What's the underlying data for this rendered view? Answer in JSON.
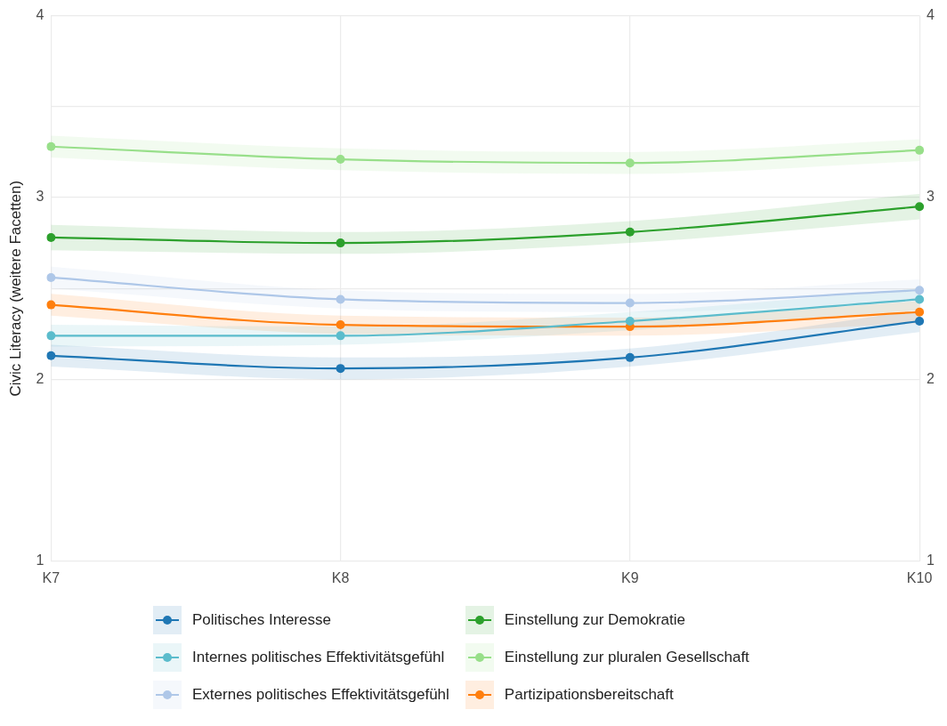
{
  "chart_data": {
    "type": "line",
    "ylabel": "Civic Literacy (weitere Facetten)",
    "categories": [
      "K7",
      "K8",
      "K9",
      "K10"
    ],
    "ylim": [
      1,
      4
    ],
    "yticks": [
      1,
      2,
      {
        "value": 2.5,
        "label": null
      },
      3,
      {
        "value": 3.5,
        "label": null
      },
      4
    ],
    "y2lim": [
      1,
      4
    ],
    "y2ticks": [
      1,
      2,
      3,
      4
    ],
    "grid": true,
    "legend": "bottom",
    "marker": "circle",
    "line_style": "solid",
    "series": [
      {
        "name": "Politisches Interesse",
        "color": "#1f77b4",
        "values": [
          2.13,
          2.06,
          2.12,
          2.32
        ],
        "lower": [
          2.07,
          2.0,
          2.07,
          2.26
        ],
        "upper": [
          2.19,
          2.12,
          2.17,
          2.38
        ]
      },
      {
        "name": "Internes politisches Effektivitätsgefühl",
        "color": "#5bbccc",
        "values": [
          2.24,
          2.24,
          2.32,
          2.44
        ],
        "lower": [
          2.18,
          2.19,
          2.27,
          2.38
        ],
        "upper": [
          2.3,
          2.29,
          2.37,
          2.5
        ]
      },
      {
        "name": "Externes politisches Effektivitätsgefühl",
        "color": "#aec7e8",
        "values": [
          2.56,
          2.44,
          2.42,
          2.49
        ],
        "lower": [
          2.5,
          2.39,
          2.37,
          2.43
        ],
        "upper": [
          2.62,
          2.49,
          2.47,
          2.55
        ]
      },
      {
        "name": "Einstellung zur Demokratie",
        "color": "#2ca02c",
        "values": [
          2.78,
          2.75,
          2.81,
          2.95
        ],
        "lower": [
          2.71,
          2.69,
          2.75,
          2.88
        ],
        "upper": [
          2.85,
          2.81,
          2.87,
          3.02
        ]
      },
      {
        "name": "Einstellung zur pluralen Gesellschaft",
        "color": "#98df8a",
        "values": [
          3.28,
          3.21,
          3.19,
          3.26
        ],
        "lower": [
          3.22,
          3.15,
          3.13,
          3.2
        ],
        "upper": [
          3.34,
          3.27,
          3.25,
          3.32
        ]
      },
      {
        "name": "Partizipationsbereitschaft",
        "color": "#ff7f0e",
        "values": [
          2.41,
          2.3,
          2.29,
          2.37
        ],
        "lower": [
          2.35,
          2.25,
          2.24,
          2.31
        ],
        "upper": [
          2.47,
          2.35,
          2.34,
          2.43
        ]
      }
    ]
  }
}
